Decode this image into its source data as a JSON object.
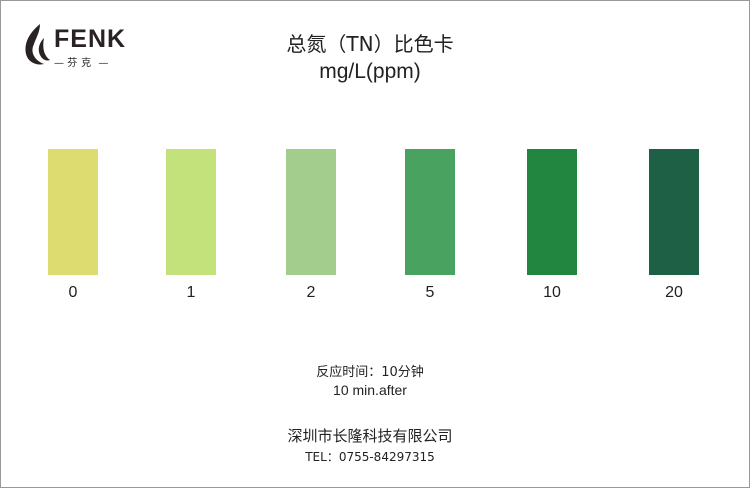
{
  "logo": {
    "brand": "FENK",
    "sub": "芬克"
  },
  "title": "总氮（TN）比色卡",
  "unit": "mg/L(ppm)",
  "swatches": [
    {
      "label": "0",
      "color": "#dcdc70"
    },
    {
      "label": "1",
      "color": "#c4e27b"
    },
    {
      "label": "2",
      "color": "#a2cd8c"
    },
    {
      "label": "5",
      "color": "#4aa261"
    },
    {
      "label": "10",
      "color": "#228540"
    },
    {
      "label": "20",
      "color": "#1e6045"
    }
  ],
  "reaction_time_cn": "反应时间：10分钟",
  "reaction_time_en": "10  min.after",
  "company": "深圳市长隆科技有限公司",
  "tel": "TEL：0755-84297315"
}
